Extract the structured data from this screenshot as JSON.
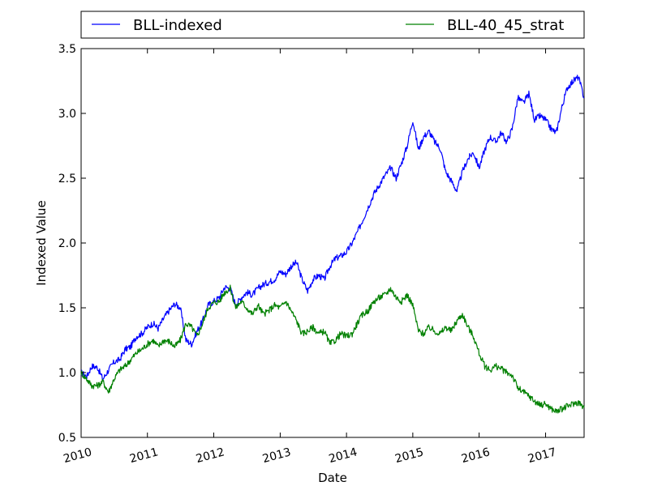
{
  "chart_data": {
    "type": "line",
    "title": "",
    "xlabel": "Date",
    "ylabel": "Indexed Value",
    "xlim": [
      "2010-01-01",
      "2017-08-01"
    ],
    "ylim": [
      0.5,
      3.5
    ],
    "x_ticks": [
      "2010",
      "2011",
      "2012",
      "2013",
      "2014",
      "2015",
      "2016",
      "2017"
    ],
    "y_ticks": [
      "0.5",
      "1.0",
      "1.5",
      "2.0",
      "2.5",
      "3.0",
      "3.5"
    ],
    "grid": false,
    "legend_position": "top",
    "series": [
      {
        "name": "BLL-indexed",
        "color": "#0000ff",
        "points": [
          [
            "2010-01-01",
            1.0
          ],
          [
            "2010-02-01",
            0.97
          ],
          [
            "2010-03-01",
            1.05
          ],
          [
            "2010-04-01",
            1.04
          ],
          [
            "2010-05-01",
            0.95
          ],
          [
            "2010-06-01",
            1.02
          ],
          [
            "2010-07-01",
            1.08
          ],
          [
            "2010-08-01",
            1.1
          ],
          [
            "2010-09-01",
            1.18
          ],
          [
            "2010-10-01",
            1.2
          ],
          [
            "2010-11-01",
            1.28
          ],
          [
            "2010-12-01",
            1.3
          ],
          [
            "2011-01-01",
            1.35
          ],
          [
            "2011-02-01",
            1.38
          ],
          [
            "2011-03-01",
            1.34
          ],
          [
            "2011-04-01",
            1.42
          ],
          [
            "2011-05-01",
            1.48
          ],
          [
            "2011-06-01",
            1.53
          ],
          [
            "2011-07-01",
            1.5
          ],
          [
            "2011-08-01",
            1.25
          ],
          [
            "2011-09-01",
            1.22
          ],
          [
            "2011-10-01",
            1.32
          ],
          [
            "2011-11-01",
            1.4
          ],
          [
            "2011-12-01",
            1.52
          ],
          [
            "2012-01-01",
            1.55
          ],
          [
            "2012-02-01",
            1.58
          ],
          [
            "2012-03-01",
            1.66
          ],
          [
            "2012-04-01",
            1.65
          ],
          [
            "2012-05-01",
            1.52
          ],
          [
            "2012-06-01",
            1.58
          ],
          [
            "2012-07-01",
            1.62
          ],
          [
            "2012-08-01",
            1.6
          ],
          [
            "2012-09-01",
            1.65
          ],
          [
            "2012-10-01",
            1.68
          ],
          [
            "2012-11-01",
            1.7
          ],
          [
            "2012-12-01",
            1.72
          ],
          [
            "2013-01-01",
            1.78
          ],
          [
            "2013-02-01",
            1.76
          ],
          [
            "2013-03-01",
            1.82
          ],
          [
            "2013-04-01",
            1.85
          ],
          [
            "2013-05-01",
            1.72
          ],
          [
            "2013-06-01",
            1.63
          ],
          [
            "2013-07-01",
            1.72
          ],
          [
            "2013-08-01",
            1.75
          ],
          [
            "2013-09-01",
            1.72
          ],
          [
            "2013-10-01",
            1.82
          ],
          [
            "2013-11-01",
            1.88
          ],
          [
            "2013-12-01",
            1.9
          ],
          [
            "2014-01-01",
            1.93
          ],
          [
            "2014-02-01",
            2.0
          ],
          [
            "2014-03-01",
            2.08
          ],
          [
            "2014-04-01",
            2.18
          ],
          [
            "2014-05-01",
            2.28
          ],
          [
            "2014-06-01",
            2.38
          ],
          [
            "2014-07-01",
            2.45
          ],
          [
            "2014-08-01",
            2.52
          ],
          [
            "2014-09-01",
            2.58
          ],
          [
            "2014-10-01",
            2.5
          ],
          [
            "2014-11-01",
            2.62
          ],
          [
            "2014-12-01",
            2.75
          ],
          [
            "2015-01-01",
            2.95
          ],
          [
            "2015-02-01",
            2.72
          ],
          [
            "2015-03-01",
            2.82
          ],
          [
            "2015-04-01",
            2.86
          ],
          [
            "2015-05-01",
            2.78
          ],
          [
            "2015-06-01",
            2.73
          ],
          [
            "2015-07-01",
            2.55
          ],
          [
            "2015-08-01",
            2.48
          ],
          [
            "2015-09-01",
            2.4
          ],
          [
            "2015-10-01",
            2.55
          ],
          [
            "2015-11-01",
            2.65
          ],
          [
            "2015-12-01",
            2.7
          ],
          [
            "2016-01-01",
            2.58
          ],
          [
            "2016-02-01",
            2.72
          ],
          [
            "2016-03-01",
            2.82
          ],
          [
            "2016-04-01",
            2.78
          ],
          [
            "2016-05-01",
            2.85
          ],
          [
            "2016-06-01",
            2.78
          ],
          [
            "2016-07-01",
            2.88
          ],
          [
            "2016-08-01",
            3.12
          ],
          [
            "2016-09-01",
            3.08
          ],
          [
            "2016-10-01",
            3.15
          ],
          [
            "2016-11-01",
            2.95
          ],
          [
            "2016-12-01",
            2.98
          ],
          [
            "2017-01-01",
            2.95
          ],
          [
            "2017-02-01",
            2.88
          ],
          [
            "2017-03-01",
            2.85
          ],
          [
            "2017-04-01",
            3.05
          ],
          [
            "2017-05-01",
            3.2
          ],
          [
            "2017-06-01",
            3.25
          ],
          [
            "2017-07-01",
            3.28
          ],
          [
            "2017-08-01",
            3.12
          ]
        ]
      },
      {
        "name": "BLL-40_45_strat",
        "color": "#008000",
        "points": [
          [
            "2010-01-01",
            1.0
          ],
          [
            "2010-02-01",
            0.95
          ],
          [
            "2010-03-01",
            0.9
          ],
          [
            "2010-04-01",
            0.9
          ],
          [
            "2010-05-01",
            0.93
          ],
          [
            "2010-06-01",
            0.85
          ],
          [
            "2010-07-01",
            0.95
          ],
          [
            "2010-08-01",
            1.02
          ],
          [
            "2010-09-01",
            1.05
          ],
          [
            "2010-10-01",
            1.1
          ],
          [
            "2010-11-01",
            1.15
          ],
          [
            "2010-12-01",
            1.18
          ],
          [
            "2011-01-01",
            1.22
          ],
          [
            "2011-02-01",
            1.25
          ],
          [
            "2011-03-01",
            1.2
          ],
          [
            "2011-04-01",
            1.25
          ],
          [
            "2011-05-01",
            1.24
          ],
          [
            "2011-06-01",
            1.2
          ],
          [
            "2011-07-01",
            1.25
          ],
          [
            "2011-08-01",
            1.38
          ],
          [
            "2011-09-01",
            1.35
          ],
          [
            "2011-10-01",
            1.28
          ],
          [
            "2011-11-01",
            1.38
          ],
          [
            "2011-12-01",
            1.5
          ],
          [
            "2012-01-01",
            1.54
          ],
          [
            "2012-02-01",
            1.55
          ],
          [
            "2012-03-01",
            1.62
          ],
          [
            "2012-04-01",
            1.65
          ],
          [
            "2012-05-01",
            1.5
          ],
          [
            "2012-06-01",
            1.55
          ],
          [
            "2012-07-01",
            1.5
          ],
          [
            "2012-08-01",
            1.45
          ],
          [
            "2012-09-01",
            1.52
          ],
          [
            "2012-10-01",
            1.45
          ],
          [
            "2012-11-01",
            1.48
          ],
          [
            "2012-12-01",
            1.52
          ],
          [
            "2013-01-01",
            1.5
          ],
          [
            "2013-02-01",
            1.55
          ],
          [
            "2013-03-01",
            1.48
          ],
          [
            "2013-04-01",
            1.4
          ],
          [
            "2013-05-01",
            1.3
          ],
          [
            "2013-06-01",
            1.32
          ],
          [
            "2013-07-01",
            1.35
          ],
          [
            "2013-08-01",
            1.3
          ],
          [
            "2013-09-01",
            1.32
          ],
          [
            "2013-10-01",
            1.22
          ],
          [
            "2013-11-01",
            1.25
          ],
          [
            "2013-12-01",
            1.3
          ],
          [
            "2014-01-01",
            1.28
          ],
          [
            "2014-02-01",
            1.3
          ],
          [
            "2014-03-01",
            1.38
          ],
          [
            "2014-04-01",
            1.45
          ],
          [
            "2014-05-01",
            1.48
          ],
          [
            "2014-06-01",
            1.55
          ],
          [
            "2014-07-01",
            1.58
          ],
          [
            "2014-08-01",
            1.6
          ],
          [
            "2014-09-01",
            1.65
          ],
          [
            "2014-10-01",
            1.58
          ],
          [
            "2014-11-01",
            1.55
          ],
          [
            "2014-12-01",
            1.6
          ],
          [
            "2015-01-01",
            1.52
          ],
          [
            "2015-02-01",
            1.32
          ],
          [
            "2015-03-01",
            1.3
          ],
          [
            "2015-04-01",
            1.35
          ],
          [
            "2015-05-01",
            1.32
          ],
          [
            "2015-06-01",
            1.3
          ],
          [
            "2015-07-01",
            1.35
          ],
          [
            "2015-08-01",
            1.32
          ],
          [
            "2015-09-01",
            1.4
          ],
          [
            "2015-10-01",
            1.45
          ],
          [
            "2015-11-01",
            1.35
          ],
          [
            "2015-12-01",
            1.28
          ],
          [
            "2016-01-01",
            1.15
          ],
          [
            "2016-02-01",
            1.05
          ],
          [
            "2016-03-01",
            1.02
          ],
          [
            "2016-04-01",
            1.05
          ],
          [
            "2016-05-01",
            1.03
          ],
          [
            "2016-06-01",
            1.0
          ],
          [
            "2016-07-01",
            0.98
          ],
          [
            "2016-08-01",
            0.88
          ],
          [
            "2016-09-01",
            0.85
          ],
          [
            "2016-10-01",
            0.82
          ],
          [
            "2016-11-01",
            0.78
          ],
          [
            "2016-12-01",
            0.75
          ],
          [
            "2017-01-01",
            0.76
          ],
          [
            "2017-02-01",
            0.72
          ],
          [
            "2017-03-01",
            0.7
          ],
          [
            "2017-04-01",
            0.72
          ],
          [
            "2017-05-01",
            0.74
          ],
          [
            "2017-06-01",
            0.76
          ],
          [
            "2017-07-01",
            0.77
          ],
          [
            "2017-08-01",
            0.73
          ]
        ]
      }
    ]
  }
}
